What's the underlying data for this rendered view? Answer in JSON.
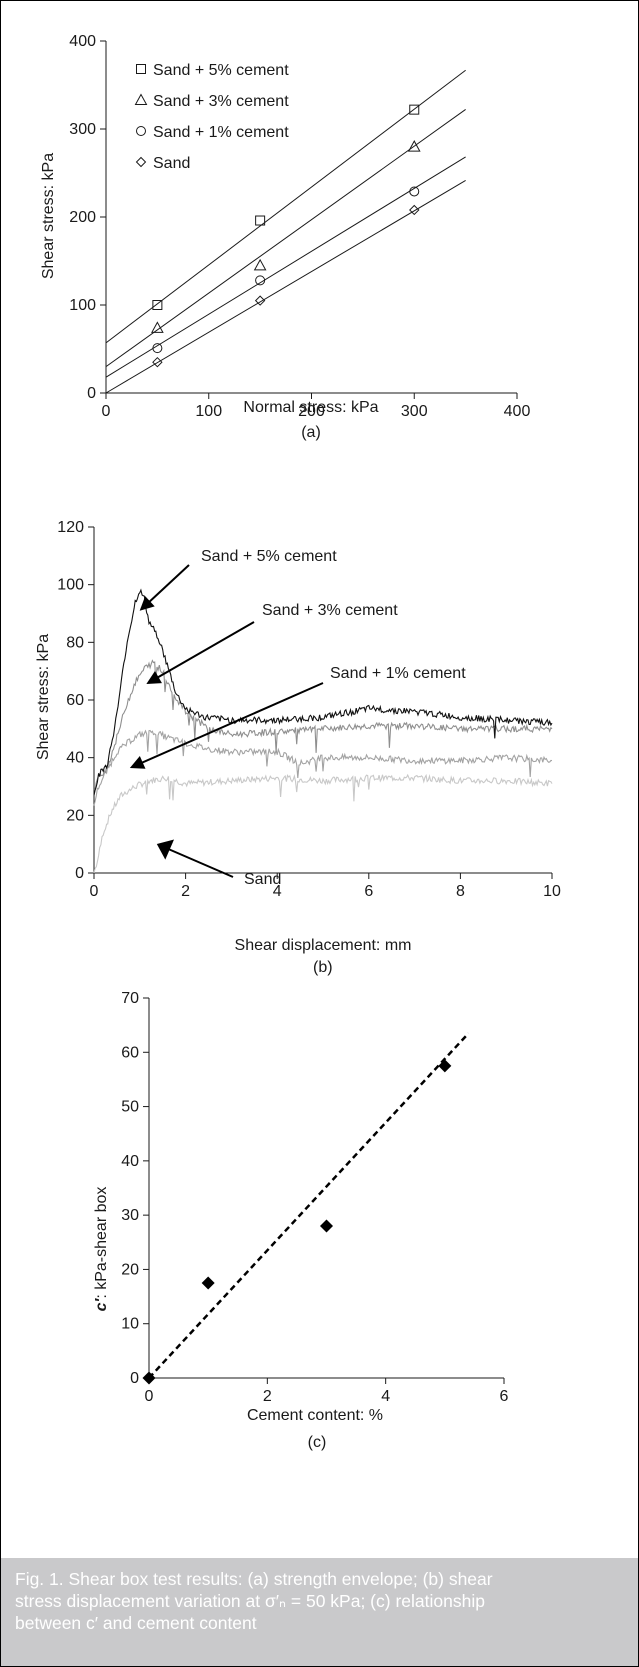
{
  "chart_data": [
    {
      "type": "scatter",
      "panel_label": "(a)",
      "xlabel": "Normal stress: kPa",
      "ylabel": "Shear stress: kPa",
      "xlim": [
        0,
        400
      ],
      "ylim": [
        0,
        400
      ],
      "xticks": [
        "0",
        "100",
        "200",
        "300",
        "400"
      ],
      "yticks": [
        "0",
        "100",
        "200",
        "300",
        "400"
      ],
      "legend_position": "top-left",
      "series": [
        {
          "name": "Sand + 5% cement",
          "marker": "square",
          "x": [
            50,
            150,
            300
          ],
          "y": [
            100,
            196,
            322
          ],
          "fit": {
            "intercept": 57,
            "slope": 0.885
          }
        },
        {
          "name": "Sand + 3% cement",
          "marker": "triangle",
          "x": [
            50,
            150,
            300
          ],
          "y": [
            74,
            145,
            280
          ],
          "fit": {
            "intercept": 30,
            "slope": 0.835
          }
        },
        {
          "name": "Sand + 1% cement",
          "marker": "circle",
          "x": [
            50,
            150,
            300
          ],
          "y": [
            51,
            128,
            229
          ],
          "fit": {
            "intercept": 18,
            "slope": 0.715
          }
        },
        {
          "name": "Sand",
          "marker": "diamond",
          "x": [
            50,
            150,
            300
          ],
          "y": [
            35,
            105,
            208
          ],
          "fit": {
            "intercept": 0,
            "slope": 0.69
          }
        }
      ]
    },
    {
      "type": "line",
      "panel_label": "(b)",
      "xlabel": "Shear displacement: mm",
      "ylabel": "Shear stress: kPa",
      "xlim": [
        0,
        10
      ],
      "ylim": [
        0,
        120
      ],
      "xticks": [
        "0",
        "2",
        "4",
        "6",
        "8",
        "10"
      ],
      "yticks": [
        "0",
        "20",
        "40",
        "60",
        "80",
        "100",
        "120"
      ],
      "series": [
        {
          "name": "Sand + 5% cement",
          "color": "#111111",
          "x": [
            0,
            0.1,
            0.3,
            0.5,
            0.7,
            0.9,
            1.0,
            1.1,
            1.2,
            1.4,
            1.6,
            1.8,
            2.0,
            2.4,
            3,
            4,
            5,
            6,
            7,
            8,
            9,
            10
          ],
          "y": [
            28,
            34,
            38,
            55,
            78,
            94,
            98,
            95,
            87,
            82,
            72,
            62,
            57,
            54,
            53,
            53,
            54,
            57,
            56,
            54,
            53,
            52
          ]
        },
        {
          "name": "Sand + 3% cement",
          "color": "#8f8f8f",
          "x": [
            0,
            0.1,
            0.3,
            0.5,
            0.7,
            0.9,
            1.1,
            1.3,
            1.5,
            1.7,
            2.0,
            2.5,
            3,
            4,
            5,
            6,
            7,
            8,
            9,
            10
          ],
          "y": [
            28,
            33,
            37,
            47,
            58,
            66,
            71,
            73,
            70,
            63,
            56,
            50,
            48,
            49,
            50,
            51,
            51,
            50,
            50,
            50
          ]
        },
        {
          "name": "Sand + 1% cement",
          "color": "#a3a3a3",
          "x": [
            0,
            0.1,
            0.3,
            0.5,
            0.8,
            1.0,
            1.3,
            1.6,
            2.0,
            2.5,
            3,
            4,
            4.5,
            5,
            6,
            7,
            8,
            9,
            10
          ],
          "y": [
            24,
            30,
            36,
            42,
            46,
            48,
            49,
            47,
            45,
            43,
            42,
            42,
            38,
            40,
            40,
            39,
            39,
            40,
            39
          ]
        },
        {
          "name": "Sand",
          "color": "#c8c8c8",
          "x": [
            0,
            0.1,
            0.2,
            0.4,
            0.6,
            0.9,
            1.2,
            1.6,
            2,
            3,
            4,
            5,
            6,
            7,
            8,
            9,
            10
          ],
          "y": [
            0,
            6,
            14,
            22,
            27,
            30,
            32,
            33,
            31,
            32,
            33,
            32,
            33,
            33,
            32,
            32,
            31
          ]
        }
      ],
      "annotations": [
        "Sand + 5% cement",
        "Sand + 3% cement",
        "Sand + 1% cement",
        "Sand"
      ]
    },
    {
      "type": "scatter",
      "panel_label": "(c)",
      "xlabel": "Cement content: %",
      "ylabel_symbol": "c′",
      "ylabel_rest": ": kPa-shear box",
      "xlim": [
        0,
        6
      ],
      "ylim": [
        0,
        70
      ],
      "xticks": [
        "0",
        "2",
        "4",
        "6"
      ],
      "yticks": [
        "0",
        "10",
        "20",
        "30",
        "40",
        "50",
        "60",
        "70"
      ],
      "series": [
        {
          "marker": "filled-diamond",
          "x": [
            0,
            1,
            3,
            5
          ],
          "y": [
            0,
            17.5,
            28,
            57.5
          ]
        }
      ],
      "trendline": {
        "style": "dashed",
        "x": [
          0,
          5.4
        ],
        "y": [
          0,
          63.5
        ]
      }
    }
  ],
  "caption": {
    "lines": [
      "Fig. 1. Shear box test results: (a) strength envelope; (b) shear",
      "stress displacement variation at σ′ₙ = 50 kPa; (c) relationship",
      "between c′ and cement content"
    ]
  },
  "colors": {
    "caption_background": "#c9c9cb",
    "caption_text": "#ffffff",
    "axes": "#1a1a1a"
  }
}
